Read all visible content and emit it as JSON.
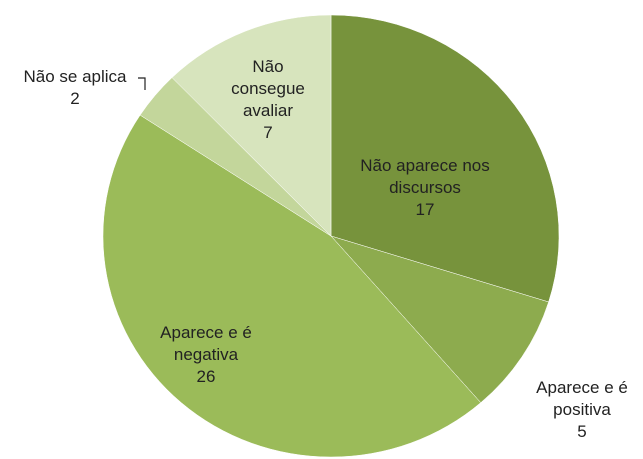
{
  "chart_data": {
    "type": "pie",
    "categories": [
      "Não aparece nos discursos",
      "Aparece e é positiva",
      "Aparece e é negativa",
      "Não se aplica",
      "Não consegue avaliar"
    ],
    "values": [
      17,
      5,
      26,
      2,
      7
    ],
    "colors": [
      "#77933c",
      "#8dab4e",
      "#9bbb59",
      "#c3d69b",
      "#d7e4bd"
    ]
  }
}
